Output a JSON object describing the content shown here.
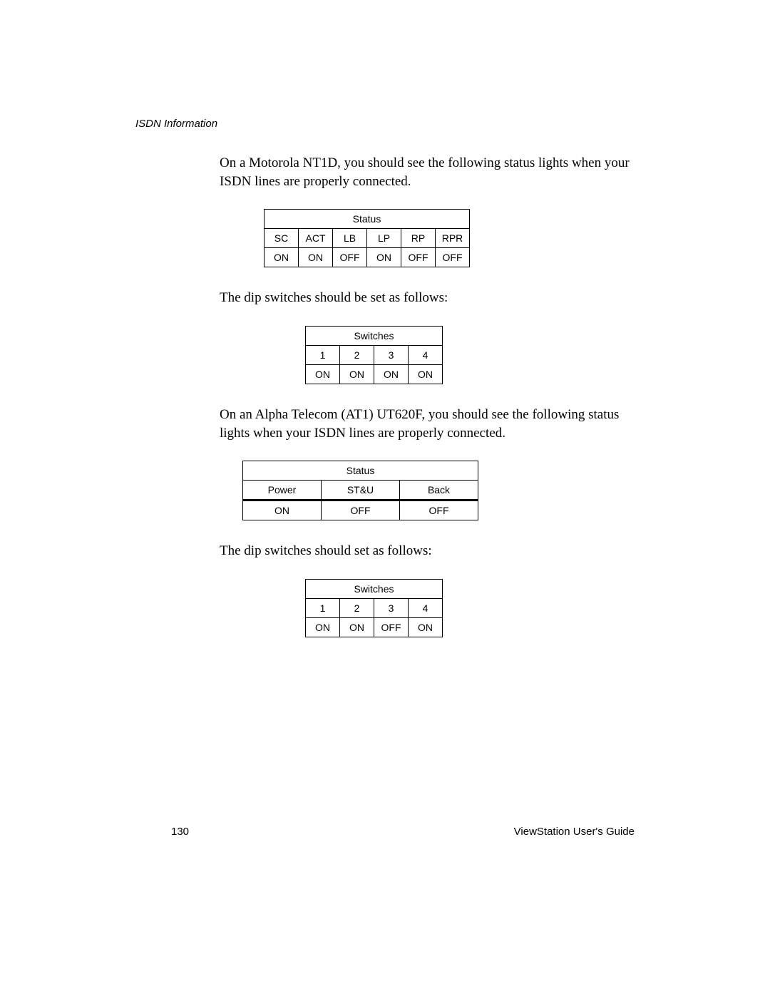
{
  "header": {
    "section": "ISDN Information"
  },
  "paragraphs": {
    "p1": "On a Motorola NT1D, you should see the following status lights when your ISDN lines are properly connected.",
    "p2": "The dip switches should be set as follows:",
    "p3": "On an Alpha Telecom (AT1) UT620F, you should see the following status lights when your ISDN lines are properly connected.",
    "p4": "The dip switches should set as follows:"
  },
  "table1": {
    "title": "Status",
    "headers": [
      "SC",
      "ACT",
      "LB",
      "LP",
      "RP",
      "RPR"
    ],
    "values": [
      "ON",
      "ON",
      "OFF",
      "ON",
      "OFF",
      "OFF"
    ]
  },
  "table2": {
    "title": "Switches",
    "headers": [
      "1",
      "2",
      "3",
      "4"
    ],
    "values": [
      "ON",
      "ON",
      "ON",
      "ON"
    ]
  },
  "table3": {
    "title": "Status",
    "headers": [
      "Power",
      "ST&U",
      "Back"
    ],
    "values": [
      "ON",
      "OFF",
      "OFF"
    ]
  },
  "table4": {
    "title": "Switches",
    "headers": [
      "1",
      "2",
      "3",
      "4"
    ],
    "values": [
      "ON",
      "ON",
      "OFF",
      "ON"
    ]
  },
  "footer": {
    "page": "130",
    "title": "ViewStation User's Guide"
  },
  "style": {
    "body_font": "Times New Roman",
    "table_font": "Arial",
    "body_fontsize": 19,
    "table_fontsize": 14,
    "header_fontsize": 15,
    "text_color": "#000000",
    "background": "#ffffff",
    "border_color": "#000000"
  }
}
